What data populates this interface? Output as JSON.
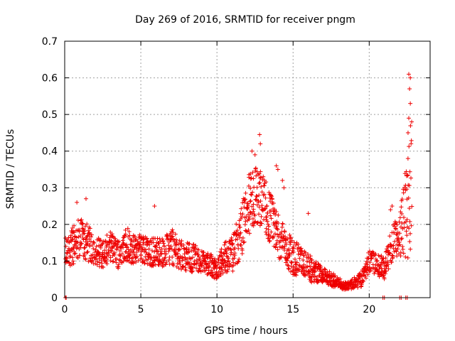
{
  "chart_data": {
    "type": "scatter",
    "title": "Day 269 of 2016, SRMTID for receiver pngm",
    "xlabel": "GPS time / hours",
    "ylabel": "SRMTID / TECUs",
    "xlim": [
      0,
      24
    ],
    "ylim": [
      0,
      0.7
    ],
    "xticks": [
      0,
      5,
      10,
      15,
      20
    ],
    "xtick_labels": [
      "0",
      "5",
      "10",
      "15",
      "20"
    ],
    "yticks": [
      0,
      0.1,
      0.2,
      0.3,
      0.4,
      0.5,
      0.6,
      0.7
    ],
    "ytick_labels": [
      "0",
      "0.1",
      "0.2",
      "0.3",
      "0.4",
      "0.5",
      "0.6",
      "0.7"
    ],
    "grid": true,
    "marker": "+",
    "color": "#ee0000",
    "series": [
      {
        "name": "SRMTID",
        "profile": {
          "x": [
            0.0,
            0.5,
            1.0,
            1.5,
            2.0,
            2.5,
            3.0,
            3.5,
            4.0,
            4.5,
            5.0,
            5.5,
            6.0,
            6.5,
            7.0,
            7.5,
            8.0,
            8.5,
            9.0,
            9.5,
            10.0,
            10.5,
            11.0,
            11.5,
            12.0,
            12.5,
            13.0,
            13.5,
            14.0,
            14.5,
            15.0,
            15.5,
            16.0,
            16.5,
            17.0,
            17.5,
            18.0,
            18.5,
            19.0,
            19.5,
            20.0,
            20.5,
            21.0,
            21.5,
            22.0,
            22.5,
            22.8
          ],
          "y": [
            0.12,
            0.14,
            0.16,
            0.15,
            0.13,
            0.12,
            0.14,
            0.12,
            0.15,
            0.13,
            0.14,
            0.12,
            0.13,
            0.12,
            0.14,
            0.12,
            0.11,
            0.11,
            0.1,
            0.09,
            0.08,
            0.11,
            0.12,
            0.16,
            0.25,
            0.28,
            0.26,
            0.22,
            0.17,
            0.14,
            0.11,
            0.1,
            0.08,
            0.07,
            0.06,
            0.05,
            0.04,
            0.03,
            0.04,
            0.05,
            0.1,
            0.09,
            0.08,
            0.15,
            0.17,
            0.25,
            0.3
          ]
        },
        "spread": [
          0.0,
          0.5,
          1.0,
          1.5,
          2.0,
          2.5,
          3.0,
          3.5,
          4.0,
          4.5,
          5.0,
          5.5,
          6.0,
          6.5,
          7.0,
          7.5,
          8.0,
          8.5,
          9.0,
          9.5,
          10.0,
          10.5,
          11.0,
          11.5,
          12.0,
          12.5,
          13.0,
          13.5,
          14.0,
          14.5,
          15.0,
          15.5,
          16.0,
          16.5,
          17.0,
          17.5,
          18.0,
          18.5,
          19.0,
          19.5,
          20.0,
          20.5,
          21.0,
          21.5,
          22.0,
          22.5,
          22.8
        ],
        "spread_values": [
          0.04,
          0.05,
          0.06,
          0.05,
          0.04,
          0.04,
          0.04,
          0.04,
          0.05,
          0.04,
          0.04,
          0.04,
          0.04,
          0.04,
          0.05,
          0.04,
          0.04,
          0.04,
          0.03,
          0.03,
          0.03,
          0.04,
          0.05,
          0.07,
          0.08,
          0.09,
          0.08,
          0.07,
          0.06,
          0.05,
          0.05,
          0.04,
          0.04,
          0.03,
          0.02,
          0.02,
          0.015,
          0.01,
          0.015,
          0.02,
          0.03,
          0.03,
          0.03,
          0.05,
          0.06,
          0.15,
          0.2
        ],
        "outliers": [
          {
            "x": 0.05,
            "y": 0.0
          },
          {
            "x": 0.1,
            "y": 0.0
          },
          {
            "x": 12.8,
            "y": 0.445
          },
          {
            "x": 12.85,
            "y": 0.42
          },
          {
            "x": 12.3,
            "y": 0.4
          },
          {
            "x": 12.5,
            "y": 0.39
          },
          {
            "x": 22.6,
            "y": 0.61
          },
          {
            "x": 22.7,
            "y": 0.6
          },
          {
            "x": 22.65,
            "y": 0.57
          },
          {
            "x": 22.7,
            "y": 0.53
          },
          {
            "x": 22.6,
            "y": 0.49
          },
          {
            "x": 22.55,
            "y": 0.45
          },
          {
            "x": 20.9,
            "y": 0.0
          },
          {
            "x": 21.0,
            "y": 0.0
          },
          {
            "x": 22.0,
            "y": 0.0
          },
          {
            "x": 22.1,
            "y": 0.0
          },
          {
            "x": 22.4,
            "y": 0.0
          },
          {
            "x": 22.5,
            "y": 0.0
          },
          {
            "x": 13.9,
            "y": 0.36
          },
          {
            "x": 14.0,
            "y": 0.35
          },
          {
            "x": 14.3,
            "y": 0.32
          },
          {
            "x": 14.4,
            "y": 0.3
          },
          {
            "x": 1.4,
            "y": 0.27
          },
          {
            "x": 0.8,
            "y": 0.26
          },
          {
            "x": 5.9,
            "y": 0.25
          },
          {
            "x": 16.0,
            "y": 0.23
          },
          {
            "x": 21.5,
            "y": 0.25
          },
          {
            "x": 21.4,
            "y": 0.24
          }
        ]
      }
    ]
  }
}
